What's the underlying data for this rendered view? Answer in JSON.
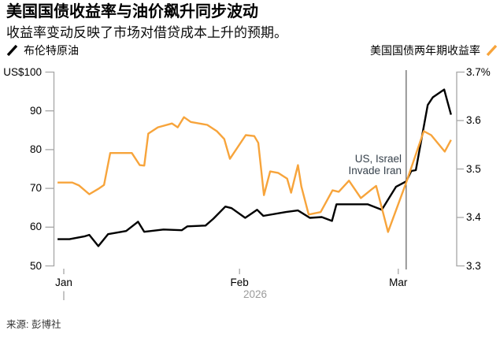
{
  "header": {
    "title": "美国国债收益率与油价飙升同步波动",
    "subtitle": "收益率变动反映了市场对借贷成本上升的预期。"
  },
  "legend": {
    "brent_label": "布伦特原油",
    "yield_label": "美国国债两年期收益率"
  },
  "footer": {
    "source": "来源: 彭博社"
  },
  "colors": {
    "brent_line": "#000000",
    "yield_line": "#F7A43B",
    "axis": "#A6A6A6",
    "muted_text": "#9B9B9B",
    "annotation_line": "#3B3B3B",
    "annotation_text": "#37424C"
  },
  "chart_data": {
    "type": "line",
    "title": "美国国债收益率与油价飙升同步波动",
    "subtitle": "收益率变动反映了市场对借贷成本上升的预期。",
    "source": "来源: 彭博社",
    "x_axis": {
      "unit": "date in 2026",
      "month_ticks": [
        {
          "label": "Jan",
          "day": 0
        },
        {
          "label": "Feb",
          "day": 31
        },
        {
          "label": "Mar",
          "day": 59
        }
      ],
      "year_label": "2026",
      "day_range": [
        -1.1,
        68.3
      ]
    },
    "y_left": {
      "series_name": "布伦特原油",
      "unit": "US$ per barrel",
      "range": [
        50,
        100
      ],
      "ticks": [
        "US$100",
        "90",
        "80",
        "70",
        "60",
        "50"
      ],
      "tick_values": [
        100,
        90,
        80,
        70,
        60,
        50
      ]
    },
    "y_right": {
      "series_name": "美国国债两年期收益率",
      "unit": "%",
      "range": [
        3.3,
        3.7
      ],
      "ticks": [
        "3.7%",
        "3.6",
        "3.5",
        "3.4",
        "3.3"
      ],
      "tick_values": [
        3.7,
        3.6,
        3.5,
        3.4,
        3.3
      ]
    },
    "annotation": {
      "line1": "US, Israel",
      "line2": "Invade Iran",
      "day": 60.4
    },
    "series": [
      {
        "name": "布伦特原油",
        "data_name": "brent-crude-line",
        "axis": "left",
        "color_key": "brent_line",
        "points": [
          [
            -1.1,
            56.9
          ],
          [
            1,
            56.9
          ],
          [
            3.6,
            57.6
          ],
          [
            4.5,
            58.0
          ],
          [
            6.1,
            55.1
          ],
          [
            7.8,
            58.2
          ],
          [
            11,
            59.0
          ],
          [
            13.1,
            61.4
          ],
          [
            14.2,
            58.8
          ],
          [
            17.6,
            59.4
          ],
          [
            20.8,
            59.2
          ],
          [
            21.8,
            60.2
          ],
          [
            25,
            60.4
          ],
          [
            26.4,
            62.2
          ],
          [
            28.5,
            65.3
          ],
          [
            29.6,
            64.9
          ],
          [
            32,
            62.4
          ],
          [
            34.1,
            64.5
          ],
          [
            35.2,
            62.9
          ],
          [
            39.2,
            63.9
          ],
          [
            41.3,
            64.3
          ],
          [
            43.4,
            62.4
          ],
          [
            45.5,
            62.6
          ],
          [
            47.3,
            61.6
          ],
          [
            48.1,
            65.9
          ],
          [
            53.6,
            65.9
          ],
          [
            56.1,
            64.5
          ],
          [
            58.6,
            70.4
          ],
          [
            60.4,
            71.8
          ],
          [
            61.3,
            74.5
          ],
          [
            62.1,
            74.7
          ],
          [
            64.2,
            91.5
          ],
          [
            65.1,
            93.5
          ],
          [
            67.1,
            95.5
          ],
          [
            68.3,
            89.0
          ]
        ]
      },
      {
        "name": "美国国债两年期收益率",
        "data_name": "two-year-yield-line",
        "axis": "right",
        "color_key": "yield_line",
        "points": [
          [
            -1.1,
            3.472
          ],
          [
            1.5,
            3.472
          ],
          [
            2.7,
            3.466
          ],
          [
            4.5,
            3.448
          ],
          [
            6.1,
            3.459
          ],
          [
            7.1,
            3.467
          ],
          [
            8.2,
            3.533
          ],
          [
            12,
            3.533
          ],
          [
            13.4,
            3.508
          ],
          [
            14.2,
            3.507
          ],
          [
            14.9,
            3.573
          ],
          [
            16.6,
            3.586
          ],
          [
            19.1,
            3.594
          ],
          [
            20.1,
            3.586
          ],
          [
            21.2,
            3.607
          ],
          [
            22.4,
            3.597
          ],
          [
            25.3,
            3.591
          ],
          [
            27,
            3.578
          ],
          [
            28.3,
            3.562
          ],
          [
            29.3,
            3.521
          ],
          [
            32.1,
            3.57
          ],
          [
            33.6,
            3.568
          ],
          [
            34.3,
            3.554
          ],
          [
            35.3,
            3.446
          ],
          [
            36.4,
            3.495
          ],
          [
            37.8,
            3.492
          ],
          [
            39.4,
            3.48
          ],
          [
            40.1,
            3.451
          ],
          [
            41.3,
            3.508
          ],
          [
            41.9,
            3.464
          ],
          [
            43.2,
            3.406
          ],
          [
            45.3,
            3.411
          ],
          [
            47.4,
            3.456
          ],
          [
            48.5,
            3.453
          ],
          [
            50.3,
            3.476
          ],
          [
            52.4,
            3.44
          ],
          [
            54.3,
            3.458
          ],
          [
            55.1,
            3.465
          ],
          [
            57.2,
            3.37
          ],
          [
            60.4,
            3.472
          ],
          [
            63.5,
            3.578
          ],
          [
            64.8,
            3.57
          ],
          [
            67.2,
            3.536
          ],
          [
            68.3,
            3.56
          ]
        ]
      }
    ]
  }
}
